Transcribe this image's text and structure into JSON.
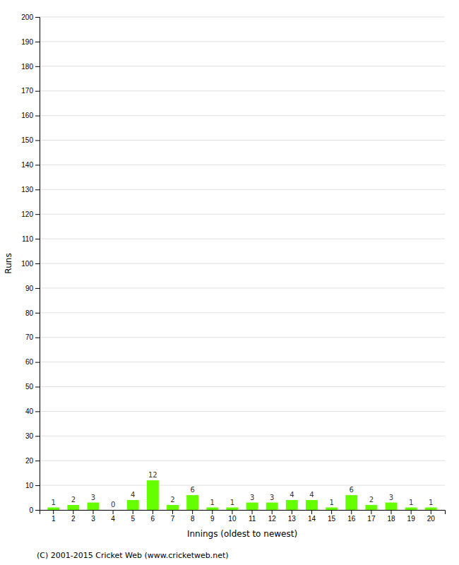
{
  "chart_data": {
    "type": "bar",
    "xlabel": "Innings (oldest to newest)",
    "ylabel": "Runs",
    "categories": [
      1,
      2,
      3,
      4,
      5,
      6,
      7,
      8,
      9,
      10,
      11,
      12,
      13,
      14,
      15,
      16,
      17,
      18,
      19,
      20
    ],
    "values": [
      1,
      2,
      3,
      0,
      4,
      12,
      2,
      6,
      1,
      1,
      3,
      3,
      4,
      4,
      1,
      6,
      2,
      3,
      1,
      1
    ],
    "color": "#66ff00",
    "ylim": [
      0,
      200
    ],
    "yticks": [
      0,
      10,
      20,
      30,
      40,
      50,
      60,
      70,
      80,
      90,
      100,
      110,
      120,
      130,
      140,
      150,
      160,
      170,
      180,
      190,
      200
    ],
    "grid": true,
    "data_labels": true,
    "annotations": [
      "(C) 2001-2015 Cricket Web (www.cricketweb.net)"
    ]
  }
}
